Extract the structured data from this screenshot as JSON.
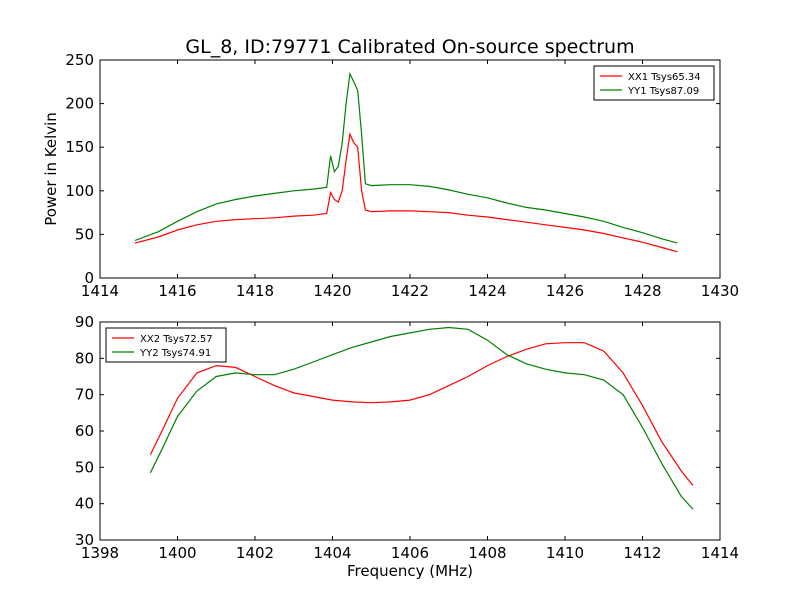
{
  "figure": {
    "title": "GL_8, ID:79771 Calibrated On-source spectrum"
  },
  "colors": {
    "red": "#ff0000",
    "green": "#008000"
  },
  "chart_data": [
    {
      "type": "line",
      "title": "GL_8, ID:79771 Calibrated On-source spectrum",
      "xlabel": "",
      "ylabel": "Power in Kelvin",
      "xlim": [
        1414,
        1430
      ],
      "ylim": [
        0,
        250
      ],
      "xticks": [
        1414,
        1416,
        1418,
        1420,
        1422,
        1424,
        1426,
        1428,
        1430
      ],
      "yticks": [
        0,
        50,
        100,
        150,
        200,
        250
      ],
      "legend_position": "top-right",
      "series": [
        {
          "name": "XX1 Tsys65.34",
          "color": "#ff0000",
          "x": [
            1414.9,
            1415.5,
            1416,
            1416.5,
            1417,
            1417.5,
            1418,
            1418.5,
            1419,
            1419.5,
            1419.85,
            1419.95,
            1420.05,
            1420.15,
            1420.25,
            1420.35,
            1420.45,
            1420.55,
            1420.65,
            1420.75,
            1420.85,
            1421,
            1421.5,
            1422,
            1422.5,
            1423,
            1423.5,
            1424,
            1424.5,
            1425,
            1425.5,
            1426,
            1426.5,
            1427,
            1427.5,
            1428,
            1428.5,
            1428.9
          ],
          "y": [
            40,
            47,
            55,
            61,
            65,
            67,
            68,
            69,
            71,
            72,
            74,
            98,
            90,
            87,
            100,
            135,
            165,
            155,
            150,
            100,
            78,
            76,
            77,
            77,
            76,
            75,
            72,
            70,
            67,
            64,
            61,
            58,
            55,
            51,
            46,
            41,
            35,
            30
          ]
        },
        {
          "name": "YY1 Tsys87.09",
          "color": "#008000",
          "x": [
            1414.9,
            1415.5,
            1416,
            1416.5,
            1417,
            1417.5,
            1418,
            1418.5,
            1419,
            1419.5,
            1419.85,
            1419.95,
            1420.05,
            1420.15,
            1420.25,
            1420.35,
            1420.45,
            1420.55,
            1420.65,
            1420.75,
            1420.85,
            1421,
            1421.5,
            1422,
            1422.5,
            1423,
            1423.5,
            1424,
            1424.5,
            1425,
            1425.5,
            1426,
            1426.5,
            1427,
            1427.5,
            1428,
            1428.5,
            1428.9
          ],
          "y": [
            43,
            53,
            65,
            76,
            85,
            90,
            94,
            97,
            100,
            102,
            104,
            140,
            122,
            128,
            155,
            200,
            234,
            225,
            215,
            165,
            108,
            106,
            107,
            107,
            105,
            101,
            96,
            92,
            86,
            81,
            78,
            74,
            70,
            65,
            58,
            52,
            45,
            40
          ]
        }
      ]
    },
    {
      "type": "line",
      "title": "",
      "xlabel": "Frequency (MHz)",
      "ylabel": "",
      "xlim": [
        1398,
        1414
      ],
      "ylim": [
        30,
        90
      ],
      "xticks": [
        1398,
        1400,
        1402,
        1404,
        1406,
        1408,
        1410,
        1412,
        1414
      ],
      "yticks": [
        30,
        40,
        50,
        60,
        70,
        80,
        90
      ],
      "legend_position": "top-left",
      "series": [
        {
          "name": "XX2 Tsys72.57",
          "color": "#ff0000",
          "x": [
            1399.3,
            1399.6,
            1400,
            1400.5,
            1401,
            1401.5,
            1402,
            1402.5,
            1403,
            1403.5,
            1404,
            1404.5,
            1405,
            1405.5,
            1406,
            1406.5,
            1407,
            1407.5,
            1408,
            1408.5,
            1409,
            1409.5,
            1410,
            1410.5,
            1411,
            1411.5,
            1412,
            1412.5,
            1413,
            1413.3
          ],
          "y": [
            53.5,
            60,
            69,
            76,
            78,
            77.5,
            75,
            72.5,
            70.5,
            69.5,
            68.5,
            68,
            67.8,
            68,
            68.5,
            70,
            72.5,
            75,
            78,
            80.5,
            82.5,
            84,
            84.3,
            84.3,
            82,
            76,
            67,
            57,
            49,
            45
          ]
        },
        {
          "name": "YY2 Tsys74.91",
          "color": "#008000",
          "x": [
            1399.3,
            1399.6,
            1400,
            1400.5,
            1401,
            1401.5,
            1402,
            1402.5,
            1403,
            1403.5,
            1404,
            1404.5,
            1405,
            1405.5,
            1406,
            1406.5,
            1407,
            1407.5,
            1408,
            1408.5,
            1409,
            1409.5,
            1410,
            1410.5,
            1411,
            1411.5,
            1412,
            1412.5,
            1413,
            1413.3
          ],
          "y": [
            48.5,
            55,
            64,
            71,
            75,
            76,
            75.5,
            75.5,
            77,
            79,
            81,
            83,
            84.5,
            86,
            87,
            88,
            88.5,
            88,
            85,
            81,
            78.5,
            77,
            76,
            75.5,
            74,
            70,
            61,
            51,
            42,
            38.5
          ]
        }
      ]
    }
  ]
}
